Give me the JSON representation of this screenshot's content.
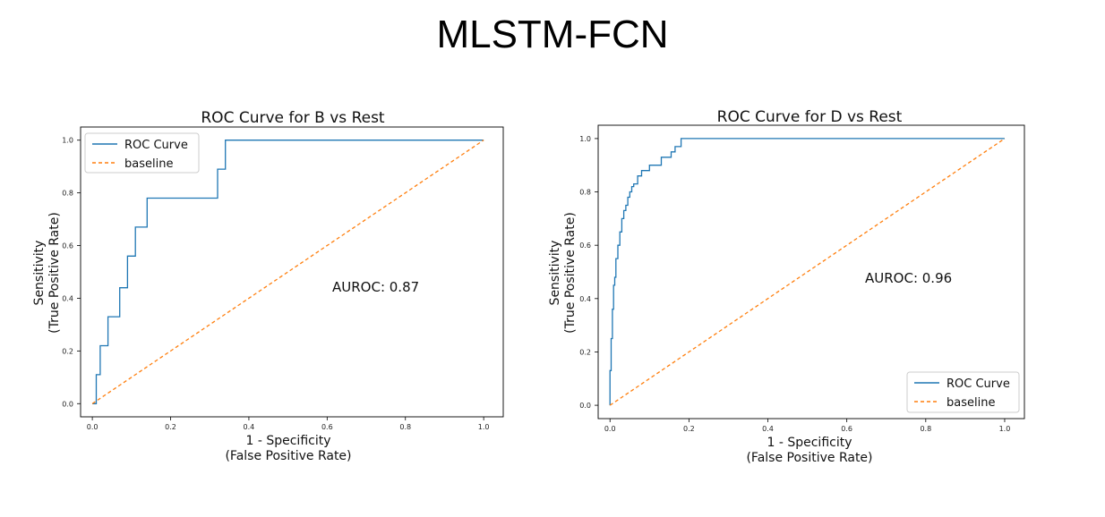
{
  "slide": {
    "title": "MLSTM-FCN"
  },
  "chart_data": [
    {
      "type": "line",
      "title": "ROC Curve for B vs Rest",
      "xlabel": [
        "1 - Specificity",
        "(False Positive Rate)"
      ],
      "ylabel": [
        "Sensitivity",
        "(True Positive Rate)"
      ],
      "xlim": [
        -0.03,
        1.05
      ],
      "ylim": [
        -0.05,
        1.05
      ],
      "xticks": [
        "0.0",
        "0.2",
        "0.4",
        "0.6",
        "0.8",
        "1.0"
      ],
      "yticks": [
        "0.0",
        "0.2",
        "0.4",
        "0.6",
        "0.8",
        "1.0"
      ],
      "legend_position": "top-left",
      "annotation": "AUROC: 0.87",
      "series": [
        {
          "name": "ROC Curve",
          "color": "#1f77b4",
          "style": "solid",
          "x": [
            0.0,
            0.01,
            0.01,
            0.02,
            0.02,
            0.03,
            0.03,
            0.04,
            0.04,
            0.07,
            0.07,
            0.08,
            0.08,
            0.09,
            0.09,
            0.11,
            0.11,
            0.14,
            0.14,
            0.32,
            0.32,
            0.34,
            0.34,
            1.0
          ],
          "y": [
            0.0,
            0.0,
            0.11,
            0.11,
            0.22,
            0.22,
            0.22,
            0.22,
            0.33,
            0.33,
            0.44,
            0.44,
            0.44,
            0.44,
            0.56,
            0.56,
            0.67,
            0.67,
            0.78,
            0.78,
            0.89,
            0.89,
            1.0,
            1.0
          ]
        },
        {
          "name": "baseline",
          "color": "#ff7f0e",
          "style": "dashed",
          "x": [
            0.0,
            1.0
          ],
          "y": [
            0.0,
            1.0
          ]
        }
      ]
    },
    {
      "type": "line",
      "title": "ROC Curve for D vs Rest",
      "xlabel": [
        "1 - Specificity",
        "(False Positive Rate)"
      ],
      "ylabel": [
        "Sensitivity",
        "(True Positive Rate)"
      ],
      "xlim": [
        -0.03,
        1.05
      ],
      "ylim": [
        -0.05,
        1.05
      ],
      "xticks": [
        "0.0",
        "0.2",
        "0.4",
        "0.6",
        "0.8",
        "1.0"
      ],
      "yticks": [
        "0.0",
        "0.2",
        "0.4",
        "0.6",
        "0.8",
        "1.0"
      ],
      "legend_position": "bottom-right",
      "annotation": "AUROC: 0.96",
      "series": [
        {
          "name": "ROC Curve",
          "color": "#1f77b4",
          "style": "solid",
          "x": [
            0.0,
            0.0,
            0.003,
            0.003,
            0.006,
            0.006,
            0.009,
            0.009,
            0.012,
            0.012,
            0.015,
            0.015,
            0.02,
            0.02,
            0.025,
            0.025,
            0.03,
            0.03,
            0.035,
            0.035,
            0.04,
            0.04,
            0.045,
            0.045,
            0.05,
            0.05,
            0.055,
            0.055,
            0.06,
            0.06,
            0.07,
            0.07,
            0.08,
            0.08,
            0.1,
            0.1,
            0.13,
            0.13,
            0.155,
            0.155,
            0.165,
            0.165,
            0.18,
            0.18,
            1.0
          ],
          "y": [
            0.0,
            0.13,
            0.13,
            0.25,
            0.25,
            0.36,
            0.36,
            0.45,
            0.45,
            0.48,
            0.48,
            0.55,
            0.55,
            0.6,
            0.6,
            0.65,
            0.65,
            0.7,
            0.7,
            0.73,
            0.73,
            0.75,
            0.75,
            0.78,
            0.78,
            0.8,
            0.8,
            0.82,
            0.82,
            0.83,
            0.83,
            0.86,
            0.86,
            0.88,
            0.88,
            0.9,
            0.9,
            0.93,
            0.93,
            0.95,
            0.95,
            0.97,
            0.97,
            1.0,
            1.0
          ]
        },
        {
          "name": "baseline",
          "color": "#ff7f0e",
          "style": "dashed",
          "x": [
            0.0,
            1.0
          ],
          "y": [
            0.0,
            1.0
          ]
        }
      ]
    }
  ]
}
